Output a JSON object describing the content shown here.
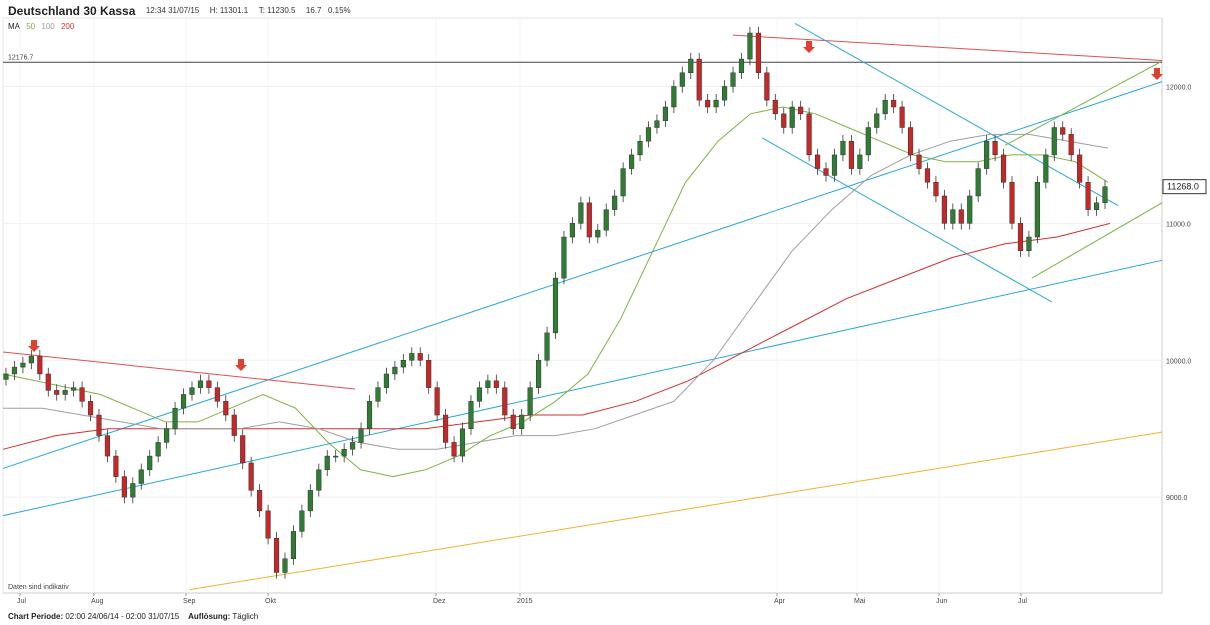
{
  "header": {
    "title": "Deutschland 30 Kassa",
    "time": "12:34 31/07/15",
    "high": "H: 11301.1",
    "low": "T: 11230.5",
    "change": "16.7",
    "change_pct": "0.15%"
  },
  "ma_legend": {
    "label": "MA",
    "items": [
      {
        "period": "50",
        "color": "#7cb342"
      },
      {
        "period": "100",
        "color": "#9e9e9e"
      },
      {
        "period": "200",
        "color": "#d32f2f"
      }
    ]
  },
  "footer": {
    "period_label": "Chart Periode:",
    "period_value": "02:00 24/06/14 - 02:00 31/07/15",
    "resolution_label": "Auflösung:",
    "resolution_value": "Täglich"
  },
  "disclaimer": "Daten sind indikativ",
  "colors": {
    "up_candle": "#2e7d32",
    "down_candle": "#c62828",
    "channel": "#29a8d6",
    "resistance": "#e05050",
    "arrow": "#e04030",
    "support_orange": "#f0b030",
    "ma50": "#7cb342",
    "ma100": "#9e9e9e",
    "ma200": "#d32f2f"
  },
  "chart_data": {
    "type": "candlestick",
    "title": "Deutschland 30 Kassa",
    "resolution": "Täglich",
    "ylim": [
      8300,
      12500
    ],
    "y_ticks": [
      "9000.0",
      "10000.0",
      "11000.0",
      "12000.0"
    ],
    "y_tick_values": [
      9000,
      10000,
      11000,
      12000
    ],
    "x_tick_labels": [
      "Jul",
      "Aug",
      "Sep",
      "Okt",
      "Dez",
      "2015",
      "Apr",
      "Mai",
      "Jun",
      "Jul"
    ],
    "last_price": "11268.0",
    "last_price_value": 11268,
    "horizontal_line": {
      "value": 12176.7,
      "label": "12176.7"
    },
    "close_series": [
      9900,
      9950,
      9980,
      10030,
      9900,
      9780,
      9750,
      9780,
      9800,
      9700,
      9600,
      9450,
      9300,
      9150,
      9000,
      9100,
      9200,
      9300,
      9400,
      9500,
      9650,
      9750,
      9800,
      9850,
      9800,
      9700,
      9600,
      9450,
      9250,
      9050,
      8900,
      8700,
      8450,
      8550,
      8750,
      8900,
      9050,
      9200,
      9300,
      9300,
      9350,
      9400,
      9500,
      9700,
      9800,
      9900,
      9950,
      10000,
      10050,
      10000,
      9800,
      9600,
      9400,
      9300,
      9500,
      9700,
      9800,
      9850,
      9800,
      9600,
      9500,
      9600,
      9800,
      10000,
      10200,
      10600,
      10900,
      11000,
      11150,
      10900,
      10950,
      11100,
      11200,
      11400,
      11500,
      11600,
      11700,
      11750,
      11850,
      12000,
      12100,
      12200,
      11900,
      11850,
      11900,
      12000,
      12100,
      12200,
      12390,
      12100,
      11900,
      11800,
      11700,
      11850,
      11800,
      11500,
      11400,
      11350,
      11500,
      11600,
      11400,
      11500,
      11700,
      11800,
      11900,
      11850,
      11700,
      11500,
      11400,
      11300,
      11200,
      11000,
      11100,
      11000,
      11200,
      11400,
      11600,
      11500,
      11300,
      11000,
      10800,
      10900,
      11300,
      11500,
      11700,
      11650,
      11500,
      11300,
      11100,
      11150,
      11268
    ],
    "ma50_series": [
      9900,
      9850,
      9800,
      9750,
      9650,
      9550,
      9550,
      9650,
      9750,
      9650,
      9400,
      9200,
      9150,
      9200,
      9300,
      9450,
      9550,
      9700,
      9900,
      10300,
      10800,
      11300,
      11600,
      11800,
      11850,
      11800,
      11700,
      11600,
      11500,
      11450,
      11450,
      11500,
      11500,
      11450,
      11300
    ],
    "ma100_series": [
      9650,
      9650,
      9600,
      9550,
      9500,
      9500,
      9500,
      9550,
      9500,
      9400,
      9350,
      9350,
      9400,
      9450,
      9450,
      9500,
      9600,
      9700,
      10000,
      10400,
      10800,
      11100,
      11350,
      11500,
      11600,
      11650,
      11650,
      11600,
      11550
    ],
    "ma200_series": [
      9350,
      9450,
      9500,
      9500,
      9500,
      9500,
      9500,
      9500,
      9500,
      9550,
      9600,
      9600,
      9700,
      9850,
      10050,
      10250,
      10450,
      10600,
      10750,
      10850,
      10900,
      11000
    ]
  }
}
